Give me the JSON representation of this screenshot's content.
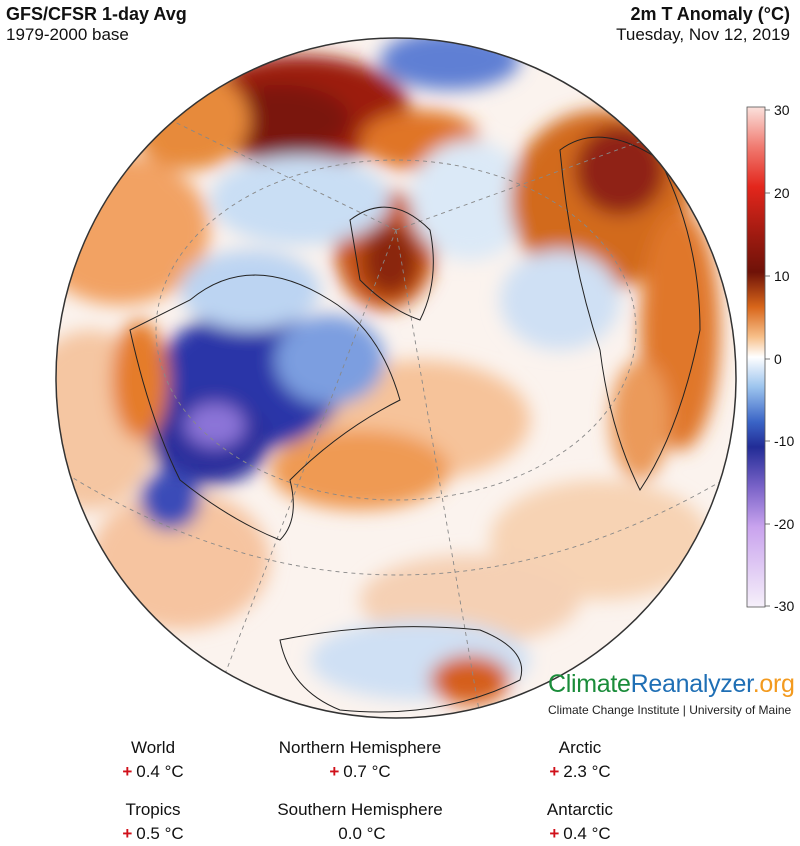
{
  "header": {
    "title": "GFS/CFSR 1-day Avg",
    "base": "1979-2000 base",
    "variable": "2m T Anomaly (°C)",
    "date": "Tuesday, Nov 12, 2019"
  },
  "colorbar": {
    "ticks": [
      "30",
      "20",
      "10",
      "0",
      "-10",
      "-20",
      "-30"
    ],
    "colors": [
      "#f4c6c0",
      "#e9332a",
      "#b31b14",
      "#7a1208",
      "#e2771b",
      "#ffffff",
      "#4d8fd6",
      "#2a36a8",
      "#a488dc",
      "#f0e6f8"
    ]
  },
  "brand": {
    "part1": "Climate",
    "part2": "Reanalyzer",
    "part3": ".org",
    "institute": "Climate Change Institute | University of Maine"
  },
  "stats": {
    "world": {
      "label": "World",
      "sign": "+",
      "value": "0.4 °C"
    },
    "nh": {
      "label": "Northern Hemisphere",
      "sign": "+",
      "value": "0.7 °C"
    },
    "arctic": {
      "label": "Arctic",
      "sign": "+",
      "value": "2.3 °C"
    },
    "tropics": {
      "label": "Tropics",
      "sign": "+",
      "value": "0.5 °C"
    },
    "sh": {
      "label": "Southern Hemisphere",
      "sign": "",
      "value": "0.0 °C"
    },
    "antarctic": {
      "label": "Antarctic",
      "sign": "+",
      "value": "0.4 °C"
    }
  }
}
